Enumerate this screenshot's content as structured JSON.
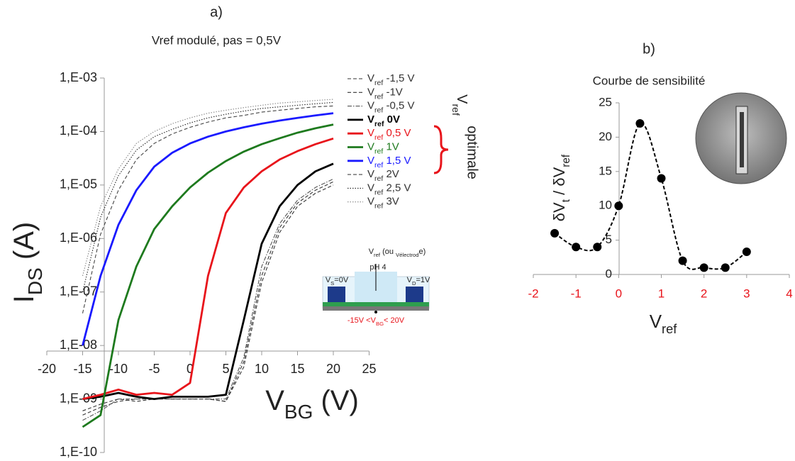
{
  "chart_data": [
    {
      "type": "line",
      "title": "a)",
      "subtitle": "Vref modulé, pas = 0,5V",
      "x_label": "VBG (V)",
      "y_label": "IDS (A)",
      "ylog": true,
      "xlim": [
        -20,
        25
      ],
      "xticks": [
        -20,
        -15,
        -10,
        -5,
        0,
        5,
        10,
        15,
        20,
        25
      ],
      "ylim": [
        1e-10,
        0.001
      ],
      "yticks": [
        {
          "value": 1e-10,
          "label": "1,E-10"
        },
        {
          "value": 1e-09,
          "label": "1,E-09"
        },
        {
          "value": 1e-08,
          "label": "1,E-08"
        },
        {
          "value": 1e-07,
          "label": "1,E-07"
        },
        {
          "value": 1e-06,
          "label": "1,E-06"
        },
        {
          "value": 1e-05,
          "label": "1,E-05"
        },
        {
          "value": 0.0001,
          "label": "1,E-04"
        },
        {
          "value": 0.001,
          "label": "1,E-03"
        }
      ],
      "x": [
        -15,
        -12.5,
        -10,
        -7.5,
        -5,
        -2.5,
        0,
        2.5,
        5,
        7.5,
        10,
        12.5,
        15,
        17.5,
        20
      ],
      "series": [
        {
          "name": "Vref -1,5 V",
          "color": "#333333",
          "linestyle": "dashed",
          "values": [
            6e-10,
            8e-10,
            1e-09,
            9e-10,
            1e-09,
            1e-09,
            1e-09,
            1e-09,
            9e-10,
            4e-09,
            1.5e-07,
            1.3e-06,
            4e-06,
            7e-06,
            1e-05
          ]
        },
        {
          "name": "Vref -1V",
          "color": "#333333",
          "linestyle": "dashed",
          "values": [
            5e-10,
            7e-10,
            9e-10,
            1e-09,
            1e-09,
            1e-09,
            1e-09,
            1e-09,
            9e-10,
            5e-09,
            2e-07,
            1.6e-06,
            4.6e-06,
            8e-06,
            1.15e-05
          ]
        },
        {
          "name": "Vref -0,5 V",
          "color": "#555555",
          "linestyle": "dashdot",
          "values": [
            4e-10,
            6e-10,
            1e-09,
            1e-09,
            1e-09,
            1e-09,
            1e-09,
            1e-09,
            1e-09,
            6e-09,
            3e-07,
            1.9e-06,
            5.2e-06,
            9e-06,
            1.3e-05
          ]
        },
        {
          "name": "Vref 0V",
          "color": "#000000",
          "linestyle": "solid",
          "bold": true,
          "values": [
            1e-09,
            1.1e-09,
            1.3e-09,
            1.1e-09,
            1e-09,
            1.1e-09,
            1.1e-09,
            1.1e-09,
            1.2e-09,
            3e-08,
            8e-07,
            4e-06,
            1e-05,
            1.8e-05,
            2.5e-05
          ]
        },
        {
          "name": "Vref 0,5 V",
          "color": "#e8141b",
          "linestyle": "solid",
          "values": [
            1e-09,
            1.2e-09,
            1.5e-09,
            1.2e-09,
            1.3e-09,
            1.2e-09,
            2e-09,
            2e-07,
            3e-06,
            9e-06,
            1.8e-05,
            3e-05,
            4.3e-05,
            5.8e-05,
            7.4e-05
          ]
        },
        {
          "name": "Vref 1V",
          "color": "#1e7a1e",
          "linestyle": "solid",
          "values": [
            3e-10,
            5e-10,
            3e-08,
            3e-07,
            1.5e-06,
            4e-06,
            9e-06,
            1.7e-05,
            2.8e-05,
            4.2e-05,
            5.8e-05,
            7.5e-05,
            9.5e-05,
            0.000115,
            0.000135
          ]
        },
        {
          "name": "Vref 1,5 V",
          "color": "#1a1aff",
          "linestyle": "solid",
          "values": [
            1e-08,
            2e-07,
            1.8e-06,
            8e-06,
            2.2e-05,
            4e-05,
            6e-05,
            8e-05,
            0.0001,
            0.00012,
            0.00014,
            0.00016,
            0.00018,
            0.0002,
            0.00022
          ]
        },
        {
          "name": "Vref 2V",
          "color": "#444444",
          "linestyle": "dashed",
          "values": [
            4e-08,
            1.2e-06,
            8e-06,
            3e-05,
            6e-05,
            9e-05,
            0.00012,
            0.00015,
            0.00018,
            0.0002,
            0.00023,
            0.00025,
            0.00027,
            0.00029,
            0.0003
          ]
        },
        {
          "name": "Vref 2,5 V",
          "color": "#222222",
          "linestyle": "dotted",
          "values": [
            1e-07,
            2.5e-06,
            1.5e-05,
            4.5e-05,
            8e-05,
            0.00011,
            0.000145,
            0.00018,
            0.00021,
            0.00024,
            0.00027,
            0.00029,
            0.00031,
            0.00033,
            0.00035
          ]
        },
        {
          "name": "Vref 3V",
          "color": "#888888",
          "linestyle": "dotted",
          "values": [
            2e-07,
            4e-06,
            2e-05,
            6e-05,
            0.0001,
            0.00014,
            0.00018,
            0.00022,
            0.00025,
            0.00028,
            0.00031,
            0.00034,
            0.00036,
            0.00038,
            0.0004
          ]
        }
      ],
      "annotations": [
        "Vref (ou Vélectrode)",
        "pH 4",
        "VS=0V",
        "VD=1V",
        "-15V <VBG< 20V",
        "Vref",
        "optimale"
      ]
    },
    {
      "type": "scatter",
      "title": "b)",
      "subtitle": "Courbe de sensibilité",
      "x_label": "Vref",
      "y_label": "δVt / δVref",
      "xlim": [
        -2,
        4
      ],
      "xticks": [
        -2,
        -1,
        0,
        1,
        2,
        3,
        4
      ],
      "xtick_color": "#e8141b",
      "ylim": [
        0,
        25
      ],
      "yticks": [
        0,
        5,
        10,
        15,
        20,
        25
      ],
      "color": "#000000",
      "line": "dashed",
      "x": [
        -1.5,
        -1,
        -0.5,
        0,
        0.5,
        1,
        1.5,
        2,
        2.5,
        3
      ],
      "values": [
        6,
        4,
        4,
        10,
        22,
        14,
        2,
        1,
        1,
        3.3
      ]
    }
  ]
}
